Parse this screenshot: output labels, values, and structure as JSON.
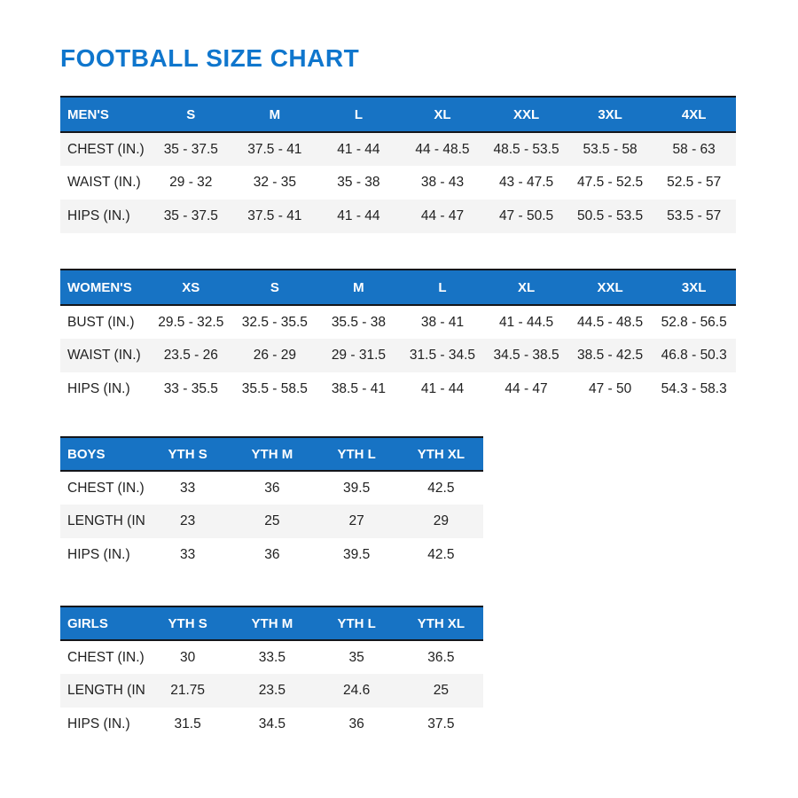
{
  "page": {
    "title": "FOOTBALL SIZE CHART"
  },
  "colors": {
    "title_blue": "#0f76cd",
    "header_blue": "#1773c4",
    "stripe_gray": "#f4f4f4",
    "border_dark": "#14161b",
    "text_dark": "#212121",
    "header_text": "#ffffff"
  },
  "tables": [
    {
      "id": "mens",
      "header": [
        "MEN'S",
        "S",
        "M",
        "L",
        "XL",
        "XXL",
        "3XL",
        "4XL"
      ],
      "rows": [
        {
          "label": "CHEST (IN.)",
          "values": [
            "35 - 37.5",
            "37.5 - 41",
            "41 - 44",
            "44 - 48.5",
            "48.5 - 53.5",
            "53.5 - 58",
            "58 - 63"
          ]
        },
        {
          "label": "WAIST (IN.)",
          "values": [
            "29 - 32",
            "32 - 35",
            "35 - 38",
            "38 - 43",
            "43 - 47.5",
            "47.5 - 52.5",
            "52.5 - 57"
          ]
        },
        {
          "label": "HIPS (IN.)",
          "values": [
            "35 - 37.5",
            "37.5 - 41",
            "41 - 44",
            "44 - 47",
            "47 - 50.5",
            "50.5 - 53.5",
            "53.5 - 57"
          ]
        }
      ]
    },
    {
      "id": "womens",
      "header": [
        "WOMEN'S",
        "XS",
        "S",
        "M",
        "L",
        "XL",
        "XXL",
        "3XL"
      ],
      "rows": [
        {
          "label": "BUST (IN.)",
          "values": [
            "29.5 - 32.5",
            "32.5 - 35.5",
            "35.5 - 38",
            "38 - 41",
            "41 - 44.5",
            "44.5 - 48.5",
            "52.8 - 56.5"
          ]
        },
        {
          "label": "WAIST (IN.)",
          "values": [
            "23.5 - 26",
            "26 - 29",
            "29 - 31.5",
            "31.5 - 34.5",
            "34.5 - 38.5",
            "38.5 - 42.5",
            "46.8 - 50.3"
          ]
        },
        {
          "label": "HIPS (IN.)",
          "values": [
            "33 - 35.5",
            "35.5 - 58.5",
            "38.5 - 41",
            "41 - 44",
            "44 - 47",
            "47 - 50",
            "54.3 - 58.3"
          ]
        }
      ]
    },
    {
      "id": "boys",
      "header": [
        "BOYS",
        "YTH S",
        "YTH M",
        "YTH L",
        "YTH XL"
      ],
      "rows": [
        {
          "label": "CHEST (IN.)",
          "values": [
            "33",
            "36",
            "39.5",
            "42.5"
          ]
        },
        {
          "label": "LENGTH (IN.)",
          "values": [
            "23",
            "25",
            "27",
            "29"
          ]
        },
        {
          "label": "HIPS (IN.)",
          "values": [
            "33",
            "36",
            "39.5",
            "42.5"
          ]
        }
      ]
    },
    {
      "id": "girls",
      "header": [
        "GIRLS",
        "YTH S",
        "YTH M",
        "YTH L",
        "YTH XL"
      ],
      "rows": [
        {
          "label": "CHEST (IN.)",
          "values": [
            "30",
            "33.5",
            "35",
            "36.5"
          ]
        },
        {
          "label": "LENGTH (IN.)",
          "values": [
            "21.75",
            "23.5",
            "24.6",
            "25"
          ]
        },
        {
          "label": "HIPS (IN.)",
          "values": [
            "31.5",
            "34.5",
            "36",
            "37.5"
          ]
        }
      ]
    }
  ]
}
